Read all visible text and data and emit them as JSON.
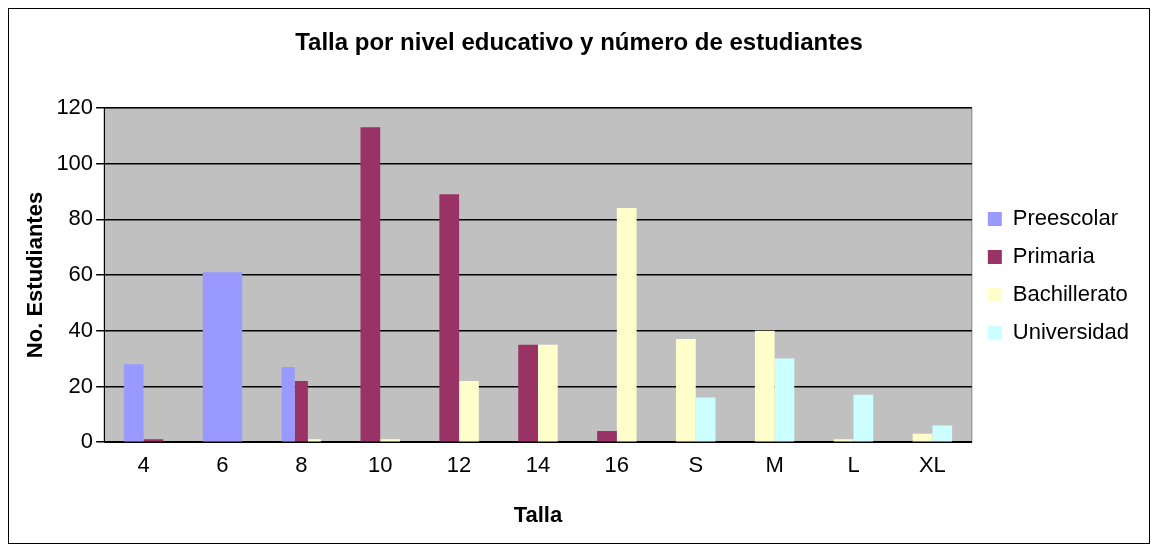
{
  "chart_data": {
    "type": "bar",
    "title": "Talla por nivel educativo y número de estudiantes",
    "xlabel": "Talla",
    "ylabel": "No. Estudiantes",
    "categories": [
      "4",
      "6",
      "8",
      "10",
      "12",
      "14",
      "16",
      "S",
      "M",
      "L",
      "XL"
    ],
    "series": [
      {
        "name": "Preescolar",
        "color": "#9999ff",
        "values": [
          28,
          61,
          27,
          null,
          null,
          null,
          null,
          null,
          null,
          null,
          null
        ]
      },
      {
        "name": "Primaria",
        "color": "#993366",
        "values": [
          0,
          null,
          22,
          113,
          89,
          35,
          4,
          null,
          null,
          null,
          null
        ]
      },
      {
        "name": "Bachillerato",
        "color": "#ffffcc",
        "values": [
          null,
          null,
          0,
          1,
          22,
          35,
          84,
          37,
          40,
          1,
          3
        ]
      },
      {
        "name": "Universidad",
        "color": "#ccffff",
        "values": [
          null,
          null,
          null,
          null,
          null,
          null,
          null,
          16,
          30,
          17,
          6
        ]
      }
    ],
    "ylim": [
      0,
      120
    ],
    "yticks": [
      0,
      20,
      40,
      60,
      80,
      100,
      120
    ],
    "grid": "y",
    "legend": "right"
  }
}
